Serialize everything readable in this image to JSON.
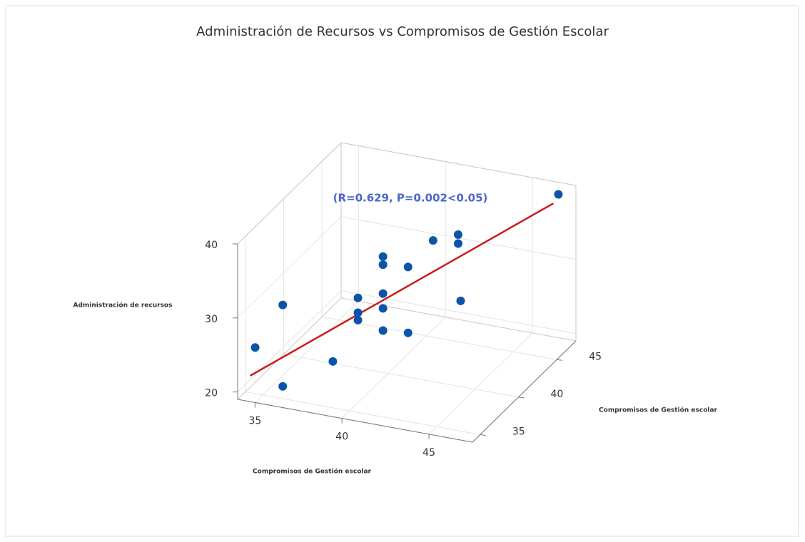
{
  "chart_data": {
    "type": "scatter3d",
    "title": "Administración de Recursos vs Compromisos de Gestión Escolar",
    "xlabel": "Compromisos de Gestión escolar",
    "ylabel": "Compromisos de Gestión escolar",
    "zlabel": "Administración de recursos",
    "annotation": "(R=0.629, P=0.002<0.05)",
    "annotation_color": "#4a66cc",
    "xlim": [
      34,
      47.5
    ],
    "ylim": [
      34,
      47.5
    ],
    "zlim": [
      19,
      40
    ],
    "xticks": [
      35,
      40,
      45
    ],
    "yticks": [
      35,
      40,
      45
    ],
    "zticks": [
      20,
      30,
      40
    ],
    "grid": true,
    "series": [
      {
        "color": "#0b55a8",
        "x": [
          46.8,
          34.7,
          35.8,
          35.8,
          37.8,
          38.8,
          38.8,
          38.8,
          39.8,
          39.8,
          39.8,
          39.8,
          39.8,
          40.8,
          40.8,
          41.8,
          42.8,
          42.8,
          42.9
        ],
        "y": [
          46.8,
          34.7,
          35.8,
          35.8,
          37.8,
          38.8,
          38.8,
          38.8,
          39.8,
          39.8,
          39.8,
          39.8,
          39.8,
          40.8,
          40.8,
          41.8,
          42.8,
          42.8,
          42.9
        ],
        "z": [
          39.2,
          25.6,
          30.7,
          19.7,
          21.9,
          29.9,
          27.9,
          26.9,
          34.9,
          33.8,
          29.9,
          27.9,
          24.9,
          32.9,
          24.0,
          35.9,
          36.1,
          34.9,
          27.1
        ]
      }
    ],
    "fit_line": {
      "color": "#cc1a1a",
      "x": [
        34.5,
        46.6
      ],
      "y": [
        34.5,
        46.6
      ],
      "z": [
        21.9,
        38.1
      ]
    }
  }
}
